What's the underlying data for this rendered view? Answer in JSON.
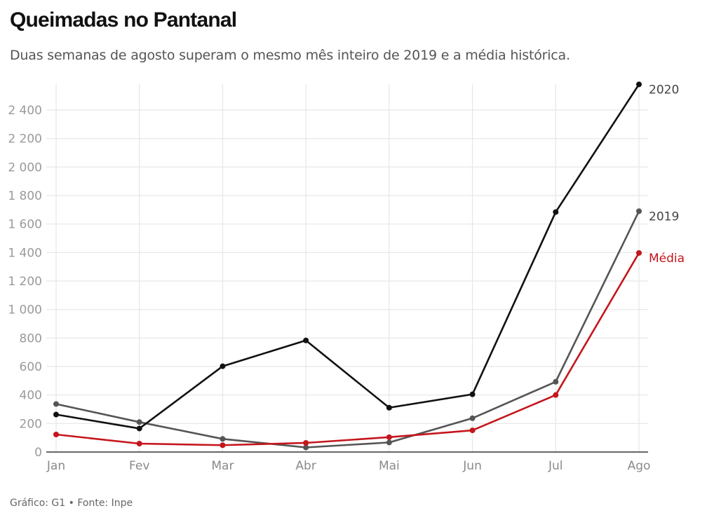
{
  "header": {
    "title": "Queimadas no Pantanal",
    "subtitle": "Duas semanas de agosto superam o mesmo mês inteiro de 2019 e a média histórica."
  },
  "footer": {
    "credit": "Gráfico: G1 • Fonte: Inpe"
  },
  "chart_data": {
    "type": "line",
    "title": "Queimadas no Pantanal",
    "subtitle": "Duas semanas de agosto superam o mesmo mês inteiro de 2019 e a média histórica.",
    "xlabel": "",
    "ylabel": "",
    "categories": [
      "Jan",
      "Fev",
      "Mar",
      "Abr",
      "Mai",
      "Jun",
      "Jul",
      "Ago"
    ],
    "ylim": [
      0,
      2500
    ],
    "yticks": [
      0,
      200,
      400,
      600,
      800,
      1000,
      1200,
      1400,
      1600,
      1800,
      2000,
      2200,
      2400
    ],
    "ytick_labels": [
      "0",
      "200",
      "400",
      "600",
      "800",
      "1 000",
      "1 200",
      "1 400",
      "1 600",
      "1 800",
      "2 000",
      "2 200",
      "2 400"
    ],
    "grid": true,
    "legend": "inline-right",
    "series": [
      {
        "name": "2019",
        "color": "#555555",
        "values": [
          337,
          210,
          92,
          32,
          67,
          237,
          493,
          1690
        ]
      },
      {
        "name": "Média",
        "color": "#c4161c",
        "values": [
          123,
          59,
          48,
          64,
          104,
          152,
          400,
          1397
        ]
      },
      {
        "name": "2020",
        "color": "#111111",
        "values": [
          263,
          165,
          602,
          783,
          311,
          405,
          1684,
          2580
        ]
      }
    ]
  }
}
